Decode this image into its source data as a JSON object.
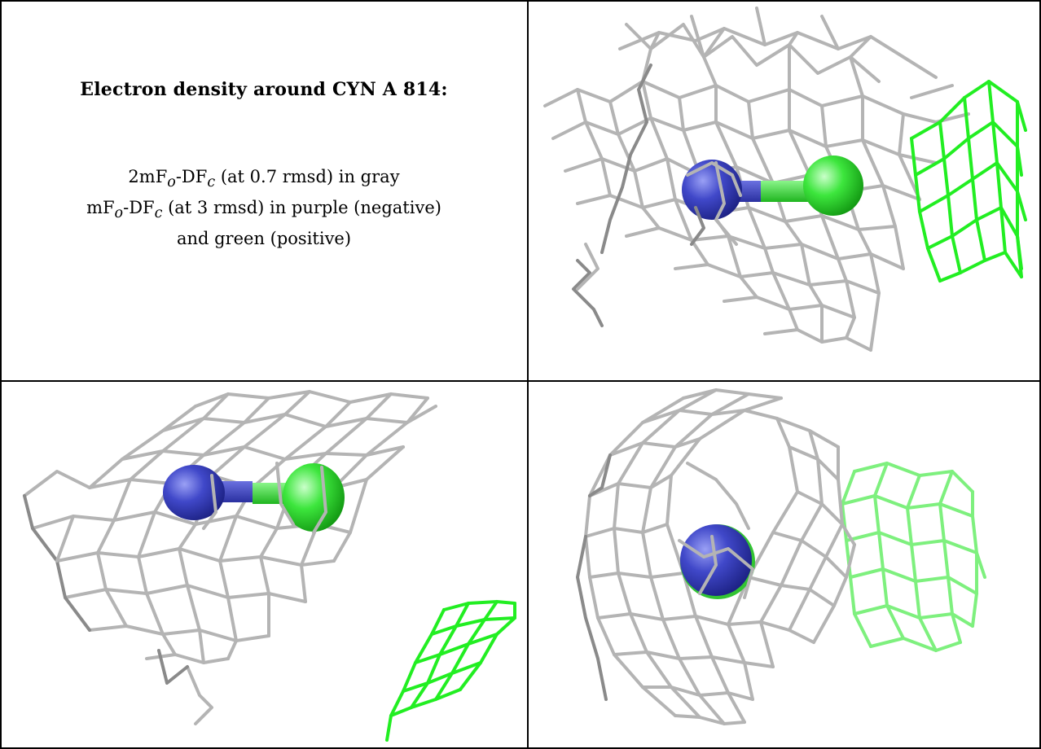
{
  "caption": {
    "title": "Electron density around CYN A 814:",
    "lines": [
      {
        "map": "2mF",
        "sub1": "o",
        "mid": "-DF",
        "sub2": "c",
        "rest": " (at 0.7 rmsd) in gray"
      },
      {
        "map": "mF",
        "sub1": "o",
        "mid": "-DF",
        "sub2": "c",
        "rest": " (at 3 rmsd) in purple (negative)"
      },
      {
        "text": "and green (positive)"
      }
    ]
  },
  "colors": {
    "gray_mesh": "#b4b4b4",
    "positive_mesh": "#22ee22",
    "nitrogen_atom": "#3b42c4",
    "carbon_atom": "#33e033"
  },
  "panels": [
    {
      "view": "top-right",
      "atoms": [
        "nitrogen",
        "carbon"
      ]
    },
    {
      "view": "bottom-left",
      "atoms": [
        "nitrogen",
        "carbon"
      ]
    },
    {
      "view": "bottom-right",
      "atoms": [
        "nitrogen"
      ]
    }
  ]
}
